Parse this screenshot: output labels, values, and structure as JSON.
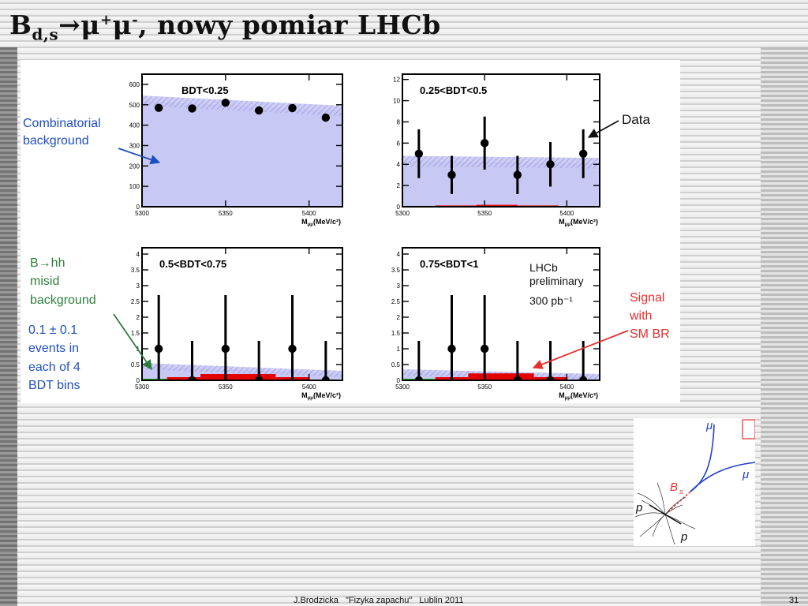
{
  "slide": {
    "title_main": "B",
    "title_sub": "d,s",
    "title_arrow": "→μ",
    "title_sup1": "+",
    "title_mu2": "μ",
    "title_sup2": "-",
    "title_rest": ", nowy pomiar LHCb",
    "footer": "J.Brodzicka   \"Fizyka zapachu\"   Lublin 2011",
    "page_number": "31"
  },
  "annotations": {
    "combinatorial": [
      "Combinatorial",
      "background"
    ],
    "bhh": [
      "B→hh",
      "misid",
      "background"
    ],
    "bhh_events": [
      "0.1 ± 0.1",
      "events in",
      "each of 4",
      "BDT bins"
    ],
    "data_label": "Data",
    "signal": [
      "Signal",
      "with",
      "SM BR"
    ],
    "lhcb": [
      "LHCb",
      "preliminary",
      "300 pb⁻¹"
    ]
  },
  "colors": {
    "combinatorial_fill": "#c8c8f5",
    "hatch": "#9a9ad8",
    "signal": "#e30000",
    "misid": "#22aa22",
    "annotation_blue": "#1f4fbf",
    "annotation_green": "#2e7d3c",
    "annotation_red": "#e53030",
    "data_points": "#000000"
  },
  "inset": {
    "mu_top": "μ",
    "mu_bottom": "μ",
    "bs": "B",
    "bs_sub": "s",
    "p_left": "p",
    "p_bottom": "p"
  },
  "chart_data": [
    {
      "type": "scatter",
      "label": "BDT<0.25",
      "xlabel": "M",
      "xlabel_sub": "μμ",
      "xlabel_unit": "(MeV/c²)",
      "xlim": [
        5300,
        5420
      ],
      "ylim": [
        0,
        650
      ],
      "xticks": [
        5300,
        5350,
        5400
      ],
      "yticks": [
        0,
        100,
        200,
        300,
        400,
        500,
        600
      ],
      "ytick_labels": [
        "0",
        "100",
        "200",
        "300",
        "400",
        "500",
        "600"
      ],
      "points": [
        {
          "x": 5310,
          "y": 485,
          "err": 0
        },
        {
          "x": 5330,
          "y": 482,
          "err": 0
        },
        {
          "x": 5350,
          "y": 510,
          "err": 0
        },
        {
          "x": 5370,
          "y": 472,
          "err": 0
        },
        {
          "x": 5390,
          "y": 484,
          "err": 0
        },
        {
          "x": 5410,
          "y": 437,
          "err": 0
        }
      ],
      "background_level": [
        520,
        470
      ],
      "band": 25,
      "signal": [],
      "misid": []
    },
    {
      "type": "scatter",
      "label": "0.25<BDT<0.5",
      "xlabel": "M",
      "xlabel_sub": "μμ",
      "xlabel_unit": "(MeV/c²)",
      "xlim": [
        5300,
        5420
      ],
      "ylim": [
        0,
        12.5
      ],
      "xticks": [
        5300,
        5350,
        5400
      ],
      "yticks": [
        0,
        2,
        4,
        6,
        8,
        10,
        12
      ],
      "ytick_labels": [
        "0",
        "2",
        "4",
        "6",
        "8",
        "10",
        "12"
      ],
      "points": [
        {
          "x": 5310,
          "y": 5,
          "err": 2.3
        },
        {
          "x": 5330,
          "y": 3,
          "err": 1.8
        },
        {
          "x": 5350,
          "y": 6,
          "err": 2.5
        },
        {
          "x": 5370,
          "y": 3,
          "err": 1.8
        },
        {
          "x": 5390,
          "y": 4,
          "err": 2.1
        },
        {
          "x": 5410,
          "y": 5,
          "err": 2.3
        }
      ],
      "background_level": [
        4.3,
        4.1
      ],
      "band": 0.5,
      "signal": [
        {
          "x0": 5320,
          "x1": 5345,
          "y": 0.12
        },
        {
          "x0": 5345,
          "x1": 5370,
          "y": 0.18
        },
        {
          "x0": 5370,
          "x1": 5395,
          "y": 0.12
        }
      ],
      "misid": [
        {
          "x0": 5300,
          "x1": 5320,
          "y": 0.08
        }
      ]
    },
    {
      "type": "scatter",
      "label": "0.5<BDT<0.75",
      "xlabel": "M",
      "xlabel_sub": "μμ",
      "xlabel_unit": "(MeV/c²)",
      "xlim": [
        5300,
        5420
      ],
      "ylim": [
        0,
        4.2
      ],
      "xticks": [
        5300,
        5350,
        5400
      ],
      "yticks": [
        0,
        0.5,
        1,
        1.5,
        2,
        2.5,
        3,
        3.5,
        4
      ],
      "ytick_labels": [
        "0",
        "0.5",
        "1",
        "1.5",
        "2",
        "2.5",
        "3",
        "3.5",
        "4"
      ],
      "points": [
        {
          "x": 5310,
          "y": 1,
          "err": 1.7
        },
        {
          "x": 5330,
          "y": 0,
          "err": 1.25
        },
        {
          "x": 5350,
          "y": 1,
          "err": 1.7
        },
        {
          "x": 5370,
          "y": 0,
          "err": 1.25
        },
        {
          "x": 5390,
          "y": 1,
          "err": 1.7
        },
        {
          "x": 5410,
          "y": 0,
          "err": 1.25
        }
      ],
      "background_level": [
        0.45,
        0.2
      ],
      "band": 0.1,
      "signal": [
        {
          "x0": 5315,
          "x1": 5335,
          "y": 0.1
        },
        {
          "x0": 5335,
          "x1": 5380,
          "y": 0.2
        },
        {
          "x0": 5380,
          "x1": 5400,
          "y": 0.1
        }
      ],
      "misid": [
        {
          "x0": 5300,
          "x1": 5315,
          "y": 0.05
        }
      ]
    },
    {
      "type": "scatter",
      "label": "0.75<BDT<1",
      "xlabel": "M",
      "xlabel_sub": "μμ",
      "xlabel_unit": "(MeV/c²)",
      "xlim": [
        5300,
        5420
      ],
      "ylim": [
        0,
        4.2
      ],
      "xticks": [
        5300,
        5350,
        5400
      ],
      "yticks": [
        0,
        0.5,
        1,
        1.5,
        2,
        2.5,
        3,
        3.5,
        4
      ],
      "ytick_labels": [
        "0",
        "0.5",
        "1",
        "1.5",
        "2",
        "2.5",
        "3",
        "3.5",
        "4"
      ],
      "points": [
        {
          "x": 5310,
          "y": 0,
          "err": 1.25
        },
        {
          "x": 5330,
          "y": 1,
          "err": 1.7
        },
        {
          "x": 5350,
          "y": 1,
          "err": 1.7
        },
        {
          "x": 5370,
          "y": 0,
          "err": 1.25
        },
        {
          "x": 5390,
          "y": 0,
          "err": 1.25
        },
        {
          "x": 5410,
          "y": 0,
          "err": 1.25
        }
      ],
      "background_level": [
        0.25,
        0.1
      ],
      "band": 0.1,
      "signal": [
        {
          "x0": 5320,
          "x1": 5340,
          "y": 0.1
        },
        {
          "x0": 5340,
          "x1": 5380,
          "y": 0.22
        },
        {
          "x0": 5380,
          "x1": 5400,
          "y": 0.1
        }
      ],
      "misid": [
        {
          "x0": 5300,
          "x1": 5320,
          "y": 0.05
        }
      ]
    }
  ]
}
